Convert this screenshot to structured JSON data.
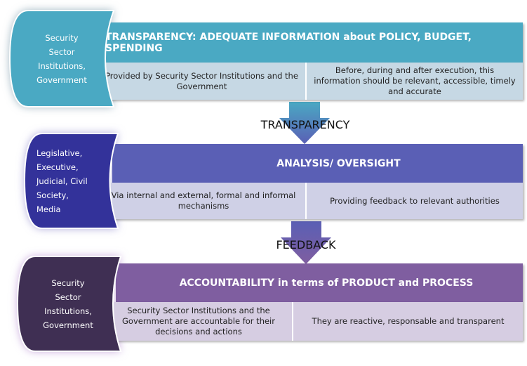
{
  "colors": {
    "row1_header": "#4aa9c3",
    "row1_left": "#4aa9c3",
    "row1_sub": "#c6d8e4",
    "row2_header": "#5a5fb5",
    "row2_left": "#33329a",
    "row2_sub": "#cfd0e6",
    "row3_header": "#7f5ea0",
    "row3_left": "#3f2f53",
    "row3_sub": "#d6cde2"
  },
  "rows": [
    {
      "actor": "Security Sector Institutions, Government",
      "header": "TRANSPARENCY: ADEQUATE INFORMATION about POLICY, BUDGET, SPENDING",
      "left_detail": "Provided  by Security Sector Institutions and the Government",
      "right_detail": "Before, during and after execution, this information should be relevant, accessible, timely and accurate"
    },
    {
      "actor": "Legislative, Executive, Judicial, Civil Society, Media",
      "header": "ANALYSIS/ OVERSIGHT",
      "left_detail": "Via internal and external, formal and informal mechanisms",
      "right_detail": "Providing  feedback to relevant authorities"
    },
    {
      "actor": "Security Sector Institutions, Government",
      "header": "ACCOUNTABILITY in terms of PRODUCT and PROCESS",
      "left_detail": "Security Sector Institutions and the Government  are accountable for their decisions  and actions",
      "right_detail": "They are reactive, responsable   and transparent"
    }
  ],
  "arrows": [
    {
      "label": "TRANSPARENCY"
    },
    {
      "label": "FEEDBACK"
    }
  ]
}
